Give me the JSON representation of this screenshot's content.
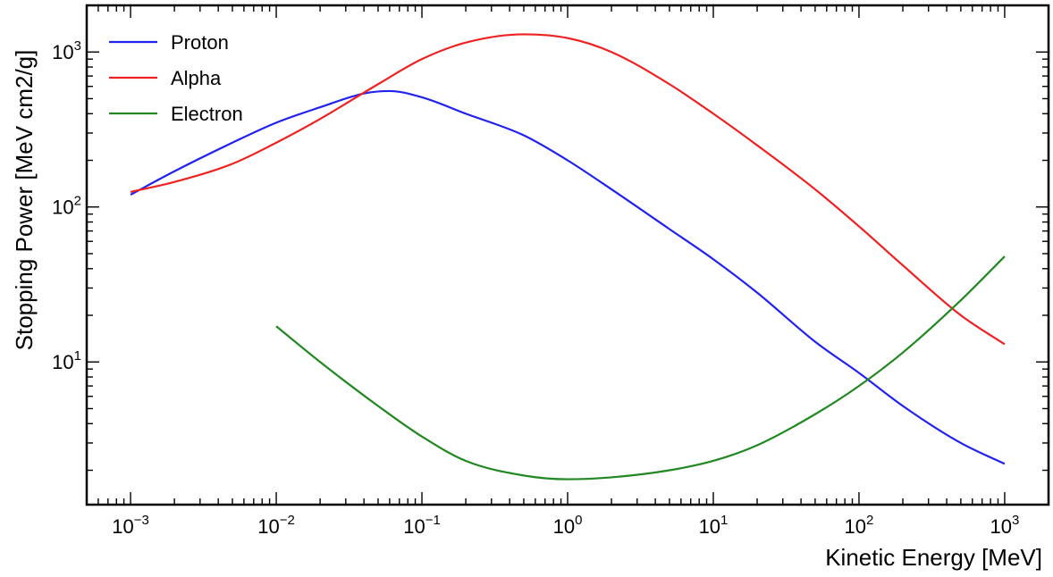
{
  "chart_data": {
    "type": "line",
    "xlabel": "Kinetic Energy [MeV]",
    "ylabel": "Stopping Power [MeV cm2/g]",
    "xscale": "log",
    "yscale": "log",
    "xlim": [
      0.0005,
      2000
    ],
    "ylim": [
      1.2,
      2000
    ],
    "x_ticks": [
      {
        "base": "10",
        "exp": "−3"
      },
      {
        "base": "10",
        "exp": "−2"
      },
      {
        "base": "10",
        "exp": "−1"
      },
      {
        "base": "10",
        "exp": "0"
      },
      {
        "base": "10",
        "exp": "1"
      },
      {
        "base": "10",
        "exp": "2"
      },
      {
        "base": "10",
        "exp": "3"
      }
    ],
    "y_ticks": [
      {
        "base": "10",
        "exp": "1"
      },
      {
        "base": "10",
        "exp": "2"
      },
      {
        "base": "10",
        "exp": "3"
      }
    ],
    "legend_position": "top-left",
    "grid": false,
    "series": [
      {
        "name": "Proton",
        "color": "#2222ee",
        "points": [
          [
            0.001,
            120
          ],
          [
            0.002,
            170
          ],
          [
            0.005,
            260
          ],
          [
            0.01,
            350
          ],
          [
            0.02,
            440
          ],
          [
            0.04,
            540
          ],
          [
            0.06,
            560
          ],
          [
            0.1,
            510
          ],
          [
            0.2,
            400
          ],
          [
            0.5,
            290
          ],
          [
            1,
            200
          ],
          [
            2,
            130
          ],
          [
            5,
            72
          ],
          [
            10,
            46
          ],
          [
            20,
            28
          ],
          [
            50,
            13.5
          ],
          [
            100,
            8.5
          ],
          [
            200,
            5.2
          ],
          [
            500,
            3.0
          ],
          [
            1000,
            2.2
          ]
        ]
      },
      {
        "name": "Alpha",
        "color": "#ee2222",
        "points": [
          [
            0.001,
            125
          ],
          [
            0.002,
            145
          ],
          [
            0.005,
            190
          ],
          [
            0.01,
            260
          ],
          [
            0.02,
            370
          ],
          [
            0.05,
            620
          ],
          [
            0.1,
            900
          ],
          [
            0.2,
            1150
          ],
          [
            0.5,
            1300
          ],
          [
            1,
            1230
          ],
          [
            2,
            1000
          ],
          [
            5,
            620
          ],
          [
            10,
            400
          ],
          [
            20,
            250
          ],
          [
            50,
            130
          ],
          [
            100,
            75
          ],
          [
            200,
            42
          ],
          [
            500,
            20
          ],
          [
            1000,
            13
          ]
        ]
      },
      {
        "name": "Electron",
        "color": "#228822",
        "points": [
          [
            0.01,
            17
          ],
          [
            0.02,
            10
          ],
          [
            0.05,
            5.2
          ],
          [
            0.1,
            3.3
          ],
          [
            0.2,
            2.3
          ],
          [
            0.5,
            1.85
          ],
          [
            1,
            1.75
          ],
          [
            2,
            1.8
          ],
          [
            5,
            2.0
          ],
          [
            10,
            2.3
          ],
          [
            20,
            2.9
          ],
          [
            50,
            4.6
          ],
          [
            100,
            7
          ],
          [
            200,
            11.5
          ],
          [
            500,
            25
          ],
          [
            1000,
            48
          ]
        ]
      }
    ]
  }
}
